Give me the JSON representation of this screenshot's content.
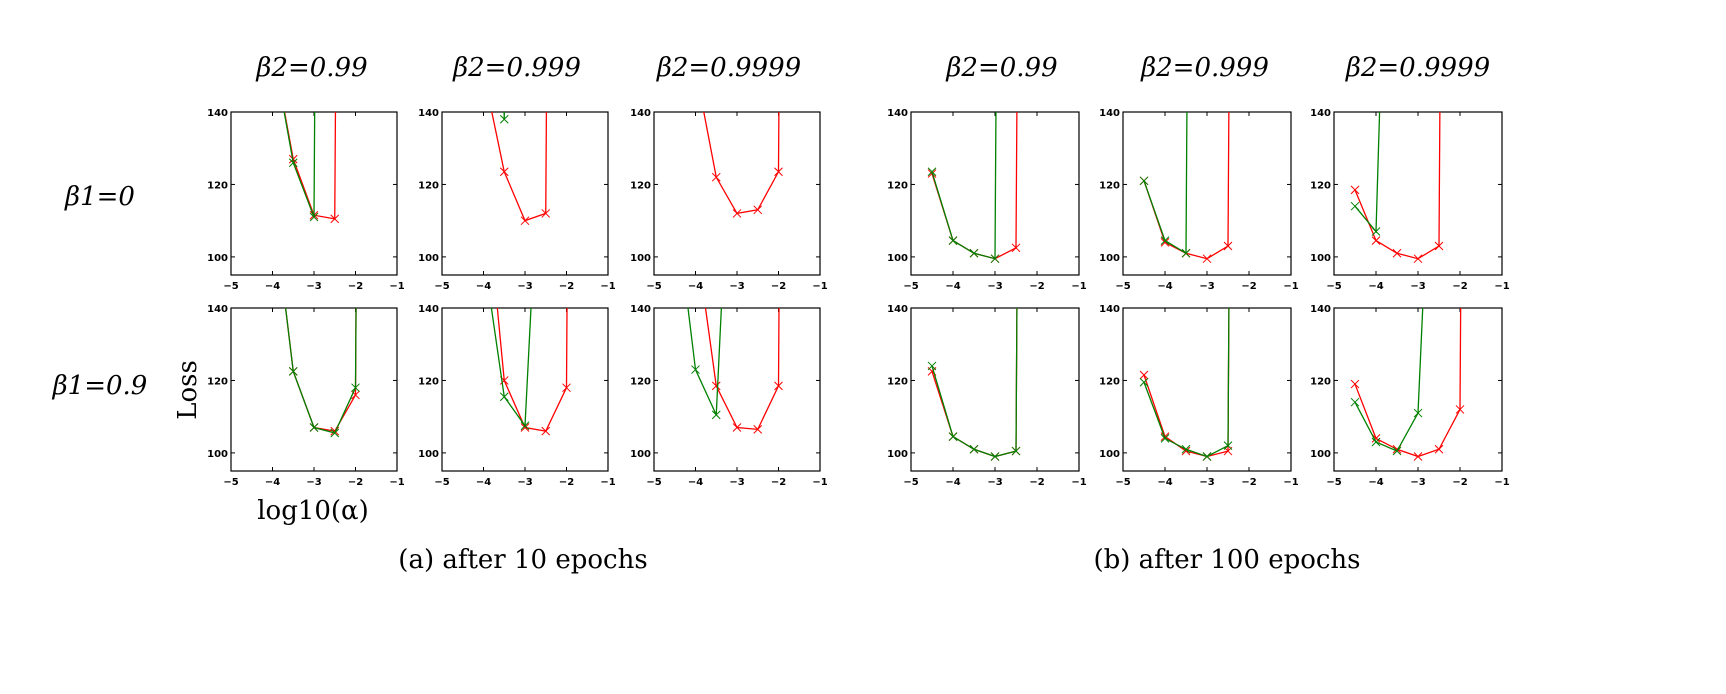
{
  "chart_data": {
    "type": "line",
    "colors": {
      "red": "#ff0000",
      "green": "#008000"
    },
    "xlim": [
      -5,
      -1
    ],
    "ylim": [
      95,
      140
    ],
    "xticks": [
      -5,
      -4,
      -3,
      -2,
      -1
    ],
    "yticks": [
      100,
      120,
      140
    ],
    "column_titles": [
      "β2=0.99",
      "β2=0.999",
      "β2=0.9999"
    ],
    "row_labels": [
      "β1=0",
      "β1=0.9"
    ],
    "ylabel": "Loss",
    "xlabel": "log10(α)",
    "captions": [
      "(a) after 10 epochs",
      "(b) after 100 epochs"
    ],
    "note_offscale": "points above 140 are off-scale (clipped)",
    "panels": [
      {
        "group": 0,
        "row": 0,
        "col": 0,
        "red": {
          "x": [
            -4,
            -3.5,
            -3,
            -2.5,
            -2
          ],
          "y": [
            158,
            127,
            111.5,
            110.5,
            1000
          ]
        },
        "green": {
          "x": [
            -4,
            -3.5,
            -3,
            -2.5
          ],
          "y": [
            158,
            126,
            111,
            1000
          ]
        }
      },
      {
        "group": 0,
        "row": 0,
        "col": 1,
        "red": {
          "x": [
            -4,
            -3.5,
            -3,
            -2.5,
            -2
          ],
          "y": [
            151,
            123.5,
            110,
            112,
            1000
          ]
        },
        "green": {
          "x": [
            -4,
            -3.5,
            -3
          ],
          "y": [
            400,
            138,
            1000
          ]
        }
      },
      {
        "group": 0,
        "row": 0,
        "col": 2,
        "red": {
          "x": [
            -4,
            -3.5,
            -3,
            -2.5,
            -2,
            -1.5
          ],
          "y": [
            152,
            122,
            112,
            113,
            123.5,
            1000
          ]
        },
        "green": {
          "x": [],
          "y": []
        }
      },
      {
        "group": 1,
        "row": 0,
        "col": 0,
        "red": {
          "x": [
            -4.5,
            -4,
            -3.5,
            -3,
            -2.5,
            -2
          ],
          "y": [
            123,
            104.5,
            101,
            99.5,
            102.5,
            1000
          ]
        },
        "green": {
          "x": [
            -4.5,
            -4,
            -3.5,
            -3,
            -2.5
          ],
          "y": [
            123.5,
            104.5,
            101,
            99.5,
            1000
          ]
        }
      },
      {
        "group": 1,
        "row": 0,
        "col": 1,
        "red": {
          "x": [
            -4.5,
            -4,
            -3.5,
            -3,
            -2.5,
            -2
          ],
          "y": [
            121,
            104,
            101,
            99.5,
            103,
            1000
          ]
        },
        "green": {
          "x": [
            -4.5,
            -4,
            -3.5,
            -3
          ],
          "y": [
            121,
            104.5,
            101,
            1000
          ]
        }
      },
      {
        "group": 1,
        "row": 0,
        "col": 2,
        "red": {
          "x": [
            -4.5,
            -4,
            -3.5,
            -3,
            -2.5,
            -2
          ],
          "y": [
            118.5,
            104.5,
            101,
            99.5,
            103,
            1000
          ]
        },
        "green": {
          "x": [
            -4.5,
            -4,
            -3.5
          ],
          "y": [
            114,
            107,
            300
          ]
        }
      },
      {
        "group": 0,
        "row": 1,
        "col": 0,
        "red": {
          "x": [
            -4,
            -3.5,
            -3,
            -2.5,
            -2,
            -1.5
          ],
          "y": [
            170,
            122.5,
            107,
            106,
            116,
            1000
          ]
        },
        "green": {
          "x": [
            -4,
            -3.5,
            -3,
            -2.5,
            -2,
            -1.5
          ],
          "y": [
            170,
            122.5,
            107,
            105.5,
            118,
            1000
          ]
        }
      },
      {
        "group": 0,
        "row": 1,
        "col": 1,
        "red": {
          "x": [
            -4,
            -3.5,
            -3,
            -2.5,
            -2,
            -1.5
          ],
          "y": [
            180,
            120,
            107,
            106,
            118,
            1000
          ]
        },
        "green": {
          "x": [
            -4,
            -3.5,
            -3,
            -2.5
          ],
          "y": [
            155,
            115.5,
            107.5,
            220
          ]
        }
      },
      {
        "group": 0,
        "row": 1,
        "col": 2,
        "red": {
          "x": [
            -4,
            -3.5,
            -3,
            -2.5,
            -2,
            -1.5
          ],
          "y": [
            160,
            118.5,
            107,
            106.5,
            118.5,
            1000
          ]
        },
        "green": {
          "x": [
            -4.5,
            -4,
            -3.5,
            -3
          ],
          "y": [
            170,
            123,
            110.5,
            230
          ]
        }
      },
      {
        "group": 1,
        "row": 1,
        "col": 0,
        "red": {
          "x": [
            -4.5,
            -4,
            -3.5,
            -3,
            -2.5,
            -2
          ],
          "y": [
            122.5,
            104.5,
            101,
            99,
            100.5,
            1000
          ]
        },
        "green": {
          "x": [
            -4.5,
            -4,
            -3.5,
            -3,
            -2.5,
            -2
          ],
          "y": [
            124,
            104.5,
            101,
            99,
            100.5,
            1000
          ]
        }
      },
      {
        "group": 1,
        "row": 1,
        "col": 1,
        "red": {
          "x": [
            -4.5,
            -4,
            -3.5,
            -3,
            -2.5,
            -2
          ],
          "y": [
            121.5,
            104.5,
            100.5,
            99,
            100.5,
            1000
          ]
        },
        "green": {
          "x": [
            -4.5,
            -4,
            -3.5,
            -3,
            -2.5,
            -2
          ],
          "y": [
            119.5,
            104,
            101,
            99,
            102,
            1000
          ]
        }
      },
      {
        "group": 1,
        "row": 1,
        "col": 2,
        "red": {
          "x": [
            -4.5,
            -4,
            -3.5,
            -3,
            -2.5,
            -2,
            -1.5
          ],
          "y": [
            119,
            104,
            101,
            99,
            101,
            112,
            1000
          ]
        },
        "green": {
          "x": [
            -4.5,
            -4,
            -3.5,
            -3,
            -2.5
          ],
          "y": [
            114,
            103,
            100.5,
            111,
            240
          ]
        }
      }
    ]
  }
}
